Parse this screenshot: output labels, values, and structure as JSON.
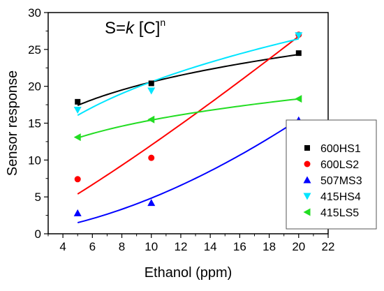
{
  "chart_data": {
    "type": "scatter",
    "annotation": {
      "lhs": "S=",
      "k": "k",
      "conc": " [C]",
      "exp": "n"
    },
    "xlabel": "Ethanol (ppm)",
    "ylabel": "Sensor response",
    "xlim": [
      3,
      22
    ],
    "ylim": [
      0,
      30
    ],
    "xticks": [
      4,
      6,
      8,
      10,
      12,
      14,
      16,
      18,
      20,
      22
    ],
    "yticks": [
      0,
      5,
      10,
      15,
      20,
      25,
      30
    ],
    "grid": false,
    "legend_position": "right",
    "x": [
      5,
      10,
      20
    ],
    "series": [
      {
        "name": "600HS1",
        "color": "#000000",
        "marker": "square",
        "values": [
          17.9,
          20.4,
          24.5
        ],
        "fit": [
          [
            5,
            17.4
          ],
          [
            10,
            20.6
          ],
          [
            20,
            24.3
          ]
        ]
      },
      {
        "name": "600LS2",
        "color": "#ff0000",
        "marker": "circle",
        "values": [
          7.4,
          10.3,
          27.0
        ],
        "fit": [
          [
            5,
            5.4
          ],
          [
            10,
            12.0
          ],
          [
            20,
            26.8
          ]
        ]
      },
      {
        "name": "507MS3",
        "color": "#0000ff",
        "marker": "triangle-up",
        "values": [
          2.8,
          4.2,
          15.4
        ],
        "fit": [
          [
            5,
            1.5
          ],
          [
            10,
            4.9
          ],
          [
            20,
            15.4
          ]
        ]
      },
      {
        "name": "415HS4",
        "color": "#00e5ff",
        "marker": "triangle-down",
        "values": [
          16.8,
          19.4,
          26.9
        ],
        "fit": [
          [
            5,
            16.1
          ],
          [
            10,
            20.5
          ],
          [
            20,
            26.5
          ]
        ]
      },
      {
        "name": "415LS5",
        "color": "#22dd22",
        "marker": "triangle-left",
        "values": [
          13.1,
          15.5,
          18.3
        ],
        "fit": [
          [
            5,
            13.0
          ],
          [
            10,
            15.4
          ],
          [
            20,
            18.3
          ]
        ]
      }
    ]
  }
}
